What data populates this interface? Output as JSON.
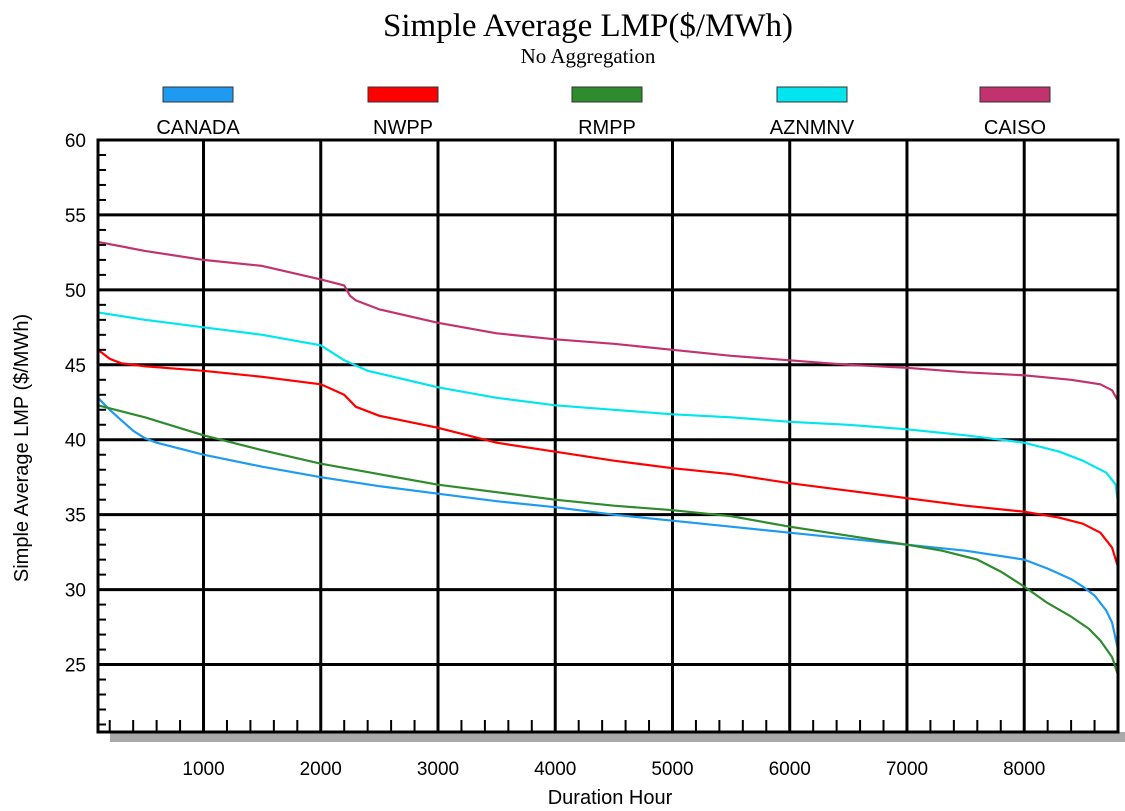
{
  "chart_data": {
    "type": "line",
    "title": "Simple Average LMP($/MWh)",
    "subtitle": "No Aggregation",
    "xlabel": "Duration Hour",
    "ylabel": "Simple Average LMP ($/MWh)",
    "xlim": [
      100,
      8800
    ],
    "ylim": [
      20.5,
      60
    ],
    "xticks": [
      1000,
      2000,
      3000,
      4000,
      5000,
      6000,
      7000,
      8000
    ],
    "yticks": [
      25,
      30,
      35,
      40,
      45,
      50,
      55,
      60
    ],
    "grid": true,
    "legend_position": "top",
    "series": [
      {
        "name": "CANADA",
        "color": "#1e9bf0",
        "points": [
          [
            100,
            42.8
          ],
          [
            200,
            42.0
          ],
          [
            300,
            41.3
          ],
          [
            400,
            40.6
          ],
          [
            500,
            40.1
          ],
          [
            600,
            39.8
          ],
          [
            800,
            39.4
          ],
          [
            1000,
            39.0
          ],
          [
            1500,
            38.2
          ],
          [
            2000,
            37.5
          ],
          [
            2500,
            36.9
          ],
          [
            3000,
            36.4
          ],
          [
            3500,
            35.9
          ],
          [
            4000,
            35.5
          ],
          [
            4500,
            35.0
          ],
          [
            5000,
            34.6
          ],
          [
            5500,
            34.2
          ],
          [
            6000,
            33.8
          ],
          [
            6500,
            33.4
          ],
          [
            7000,
            33.0
          ],
          [
            7500,
            32.6
          ],
          [
            8000,
            32.0
          ],
          [
            8200,
            31.4
          ],
          [
            8400,
            30.7
          ],
          [
            8500,
            30.2
          ],
          [
            8600,
            29.6
          ],
          [
            8700,
            28.6
          ],
          [
            8750,
            27.8
          ],
          [
            8800,
            26.0
          ]
        ]
      },
      {
        "name": "NWPP",
        "color": "#ff0000",
        "points": [
          [
            100,
            46.0
          ],
          [
            200,
            45.4
          ],
          [
            300,
            45.1
          ],
          [
            500,
            44.9
          ],
          [
            1000,
            44.6
          ],
          [
            1500,
            44.2
          ],
          [
            2000,
            43.7
          ],
          [
            2200,
            43.0
          ],
          [
            2300,
            42.2
          ],
          [
            2500,
            41.6
          ],
          [
            3000,
            40.8
          ],
          [
            3500,
            39.8
          ],
          [
            4000,
            39.2
          ],
          [
            4500,
            38.6
          ],
          [
            5000,
            38.1
          ],
          [
            5500,
            37.7
          ],
          [
            6000,
            37.1
          ],
          [
            6500,
            36.6
          ],
          [
            7000,
            36.1
          ],
          [
            7500,
            35.6
          ],
          [
            8000,
            35.2
          ],
          [
            8300,
            34.8
          ],
          [
            8500,
            34.4
          ],
          [
            8650,
            33.8
          ],
          [
            8750,
            32.8
          ],
          [
            8800,
            31.5
          ]
        ]
      },
      {
        "name": "RMPP",
        "color": "#2e8b2e",
        "points": [
          [
            100,
            42.3
          ],
          [
            500,
            41.5
          ],
          [
            1000,
            40.3
          ],
          [
            1500,
            39.3
          ],
          [
            2000,
            38.4
          ],
          [
            2500,
            37.7
          ],
          [
            3000,
            37.0
          ],
          [
            3500,
            36.5
          ],
          [
            4000,
            36.0
          ],
          [
            4500,
            35.6
          ],
          [
            5000,
            35.3
          ],
          [
            5500,
            34.9
          ],
          [
            6000,
            34.2
          ],
          [
            6500,
            33.6
          ],
          [
            7000,
            33.0
          ],
          [
            7300,
            32.6
          ],
          [
            7600,
            32.0
          ],
          [
            7800,
            31.2
          ],
          [
            8000,
            30.2
          ],
          [
            8200,
            29.1
          ],
          [
            8400,
            28.2
          ],
          [
            8550,
            27.4
          ],
          [
            8650,
            26.6
          ],
          [
            8750,
            25.5
          ],
          [
            8800,
            24.3
          ]
        ]
      },
      {
        "name": "AZNMNV",
        "color": "#00e5ee",
        "points": [
          [
            100,
            48.5
          ],
          [
            500,
            48.0
          ],
          [
            1000,
            47.5
          ],
          [
            1500,
            47.0
          ],
          [
            2000,
            46.3
          ],
          [
            2200,
            45.3
          ],
          [
            2400,
            44.6
          ],
          [
            3000,
            43.5
          ],
          [
            3500,
            42.8
          ],
          [
            4000,
            42.3
          ],
          [
            4500,
            42.0
          ],
          [
            5000,
            41.7
          ],
          [
            5500,
            41.5
          ],
          [
            6000,
            41.2
          ],
          [
            6500,
            41.0
          ],
          [
            7000,
            40.7
          ],
          [
            7500,
            40.3
          ],
          [
            8000,
            39.8
          ],
          [
            8300,
            39.2
          ],
          [
            8500,
            38.6
          ],
          [
            8700,
            37.8
          ],
          [
            8780,
            37.0
          ],
          [
            8800,
            35.8
          ]
        ]
      },
      {
        "name": "CAISO",
        "color": "#c2326e",
        "points": [
          [
            100,
            53.2
          ],
          [
            500,
            52.6
          ],
          [
            1000,
            52.0
          ],
          [
            1500,
            51.6
          ],
          [
            2000,
            50.7
          ],
          [
            2200,
            50.3
          ],
          [
            2250,
            49.6
          ],
          [
            2300,
            49.3
          ],
          [
            2500,
            48.7
          ],
          [
            3000,
            47.8
          ],
          [
            3500,
            47.1
          ],
          [
            4000,
            46.7
          ],
          [
            4500,
            46.4
          ],
          [
            5000,
            46.0
          ],
          [
            5500,
            45.6
          ],
          [
            6000,
            45.3
          ],
          [
            6500,
            45.0
          ],
          [
            7000,
            44.8
          ],
          [
            7500,
            44.5
          ],
          [
            8000,
            44.3
          ],
          [
            8400,
            44.0
          ],
          [
            8650,
            43.7
          ],
          [
            8750,
            43.3
          ],
          [
            8800,
            42.6
          ]
        ]
      }
    ]
  }
}
